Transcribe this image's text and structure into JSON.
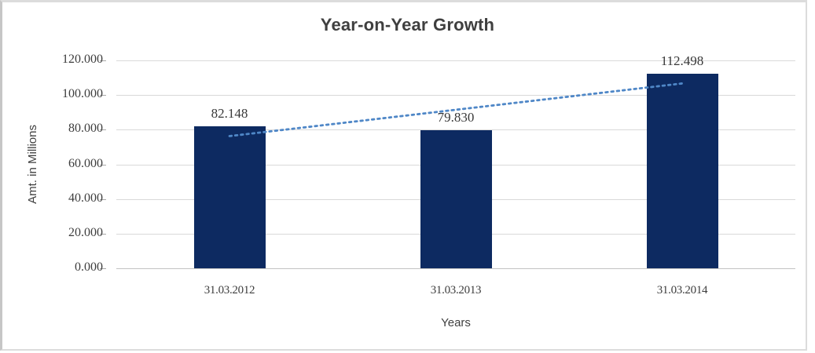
{
  "chart_data": {
    "type": "bar",
    "title": "Year-on-Year Growth",
    "xlabel": "Years",
    "ylabel": "Amt. in Millions",
    "categories": [
      "31.03.2012",
      "31.03.2013",
      "31.03.2014"
    ],
    "values": [
      82.148,
      79.83,
      112.498
    ],
    "data_labels": [
      "82.148",
      "79.830",
      "112.498"
    ],
    "ylim": [
      0,
      120
    ],
    "ytick_step": 20,
    "ytick_labels": [
      "0.000",
      "20.000",
      "40.000",
      "60.000",
      "80.000",
      "100.000",
      "120.000"
    ],
    "grid": true,
    "legend": "none",
    "trendline": {
      "type": "linear",
      "style": "dotted",
      "start_value": 76.3,
      "end_value": 106.7
    }
  },
  "colors": {
    "bar": "#0d2a61",
    "trendline": "#4f87c7",
    "gridline": "#d9d9d9",
    "axis_line": "#c3c3c3",
    "tick_mark": "#a8a8a8",
    "title_text": "#3f3f3f",
    "label_text": "#3d3d3d",
    "frame_border": "#dcdcdc"
  }
}
